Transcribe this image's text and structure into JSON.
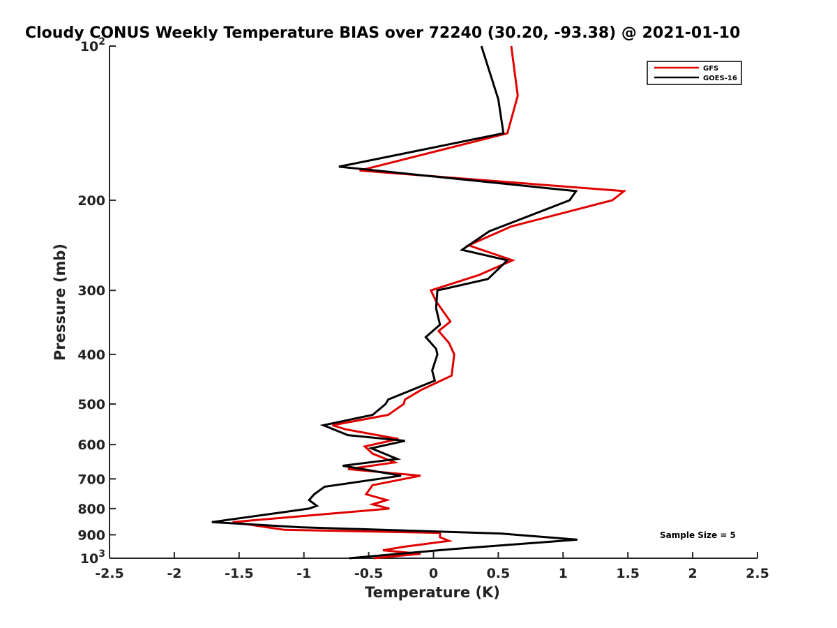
{
  "chart_data": {
    "type": "line",
    "title": "Cloudy CONUS Weekly Temperature BIAS over 72240 (30.20, -93.38) @ 2021-01-10",
    "xlabel": "Temperature (K)",
    "ylabel": "Pressure (mb)",
    "xlim": [
      -2.5,
      2.5
    ],
    "ylim": [
      1000,
      100
    ],
    "yscale": "log",
    "x_ticks": [
      -2.5,
      -2,
      -1.5,
      -1,
      -0.5,
      0,
      0.5,
      1,
      1.5,
      2,
      2.5
    ],
    "x_tick_labels": [
      "-2.5",
      "-2",
      "-1.5",
      "-1",
      "-0.5",
      "0",
      "0.5",
      "1",
      "1.5",
      "2",
      "2.5"
    ],
    "y_ticks": [
      {
        "value": 100,
        "label": "10",
        "sup": "2"
      },
      {
        "value": 200,
        "label": "200",
        "sup": ""
      },
      {
        "value": 300,
        "label": "300",
        "sup": ""
      },
      {
        "value": 400,
        "label": "400",
        "sup": ""
      },
      {
        "value": 500,
        "label": "500",
        "sup": ""
      },
      {
        "value": 600,
        "label": "600",
        "sup": ""
      },
      {
        "value": 700,
        "label": "700",
        "sup": ""
      },
      {
        "value": 800,
        "label": "800",
        "sup": ""
      },
      {
        "value": 900,
        "label": "900",
        "sup": ""
      },
      {
        "value": 1000,
        "label": "10",
        "sup": "3"
      }
    ],
    "legend_position": "top-right",
    "annotation": "Sample Size = 5",
    "series": [
      {
        "name": "GFS",
        "color": "#e00000",
        "points": [
          [
            0.6,
            100
          ],
          [
            0.65,
            125
          ],
          [
            0.57,
            148
          ],
          [
            -0.57,
            175
          ],
          [
            1.47,
            192
          ],
          [
            1.38,
            200
          ],
          [
            0.6,
            225
          ],
          [
            0.27,
            245
          ],
          [
            0.61,
            262
          ],
          [
            0.35,
            280
          ],
          [
            -0.02,
            300
          ],
          [
            0.02,
            315
          ],
          [
            0.13,
            345
          ],
          [
            0.04,
            360
          ],
          [
            0.12,
            380
          ],
          [
            0.16,
            400
          ],
          [
            0.14,
            440
          ],
          [
            -0.1,
            470
          ],
          [
            -0.22,
            490
          ],
          [
            -0.23,
            500
          ],
          [
            -0.35,
            525
          ],
          [
            -0.78,
            550
          ],
          [
            -0.68,
            560
          ],
          [
            -0.27,
            585
          ],
          [
            -0.53,
            605
          ],
          [
            -0.47,
            625
          ],
          [
            -0.3,
            650
          ],
          [
            -0.66,
            670
          ],
          [
            -0.1,
            690
          ],
          [
            -0.47,
            720
          ],
          [
            -0.52,
            750
          ],
          [
            -0.36,
            770
          ],
          [
            -0.47,
            785
          ],
          [
            -0.34,
            800
          ],
          [
            -1.55,
            850
          ],
          [
            -1.15,
            880
          ],
          [
            0.05,
            892
          ],
          [
            0.05,
            910
          ],
          [
            0.12,
            925
          ],
          [
            -0.23,
            950
          ],
          [
            -0.39,
            965
          ],
          [
            -0.1,
            980
          ],
          [
            -0.46,
            1000
          ]
        ]
      },
      {
        "name": "GOES-16",
        "color": "#000000",
        "points": [
          [
            0.37,
            100
          ],
          [
            0.5,
            127
          ],
          [
            0.54,
            148
          ],
          [
            -0.73,
            172
          ],
          [
            1.1,
            192
          ],
          [
            1.05,
            200
          ],
          [
            0.43,
            230
          ],
          [
            0.22,
            250
          ],
          [
            0.57,
            262
          ],
          [
            0.42,
            285
          ],
          [
            0.03,
            300
          ],
          [
            0.02,
            325
          ],
          [
            0.05,
            350
          ],
          [
            -0.06,
            370
          ],
          [
            0.02,
            390
          ],
          [
            0.03,
            400
          ],
          [
            -0.01,
            430
          ],
          [
            0.01,
            450
          ],
          [
            -0.35,
            490
          ],
          [
            -0.37,
            500
          ],
          [
            -0.47,
            525
          ],
          [
            -0.85,
            550
          ],
          [
            -0.66,
            575
          ],
          [
            -0.22,
            590
          ],
          [
            -0.48,
            610
          ],
          [
            -0.28,
            640
          ],
          [
            -0.7,
            660
          ],
          [
            -0.25,
            690
          ],
          [
            -0.84,
            725
          ],
          [
            -0.92,
            750
          ],
          [
            -0.96,
            770
          ],
          [
            -0.9,
            790
          ],
          [
            -0.96,
            800
          ],
          [
            -1.71,
            850
          ],
          [
            -1.03,
            870
          ],
          [
            0.52,
            895
          ],
          [
            1.11,
            920
          ],
          [
            0.14,
            960
          ],
          [
            -0.65,
            1000
          ]
        ]
      }
    ]
  }
}
